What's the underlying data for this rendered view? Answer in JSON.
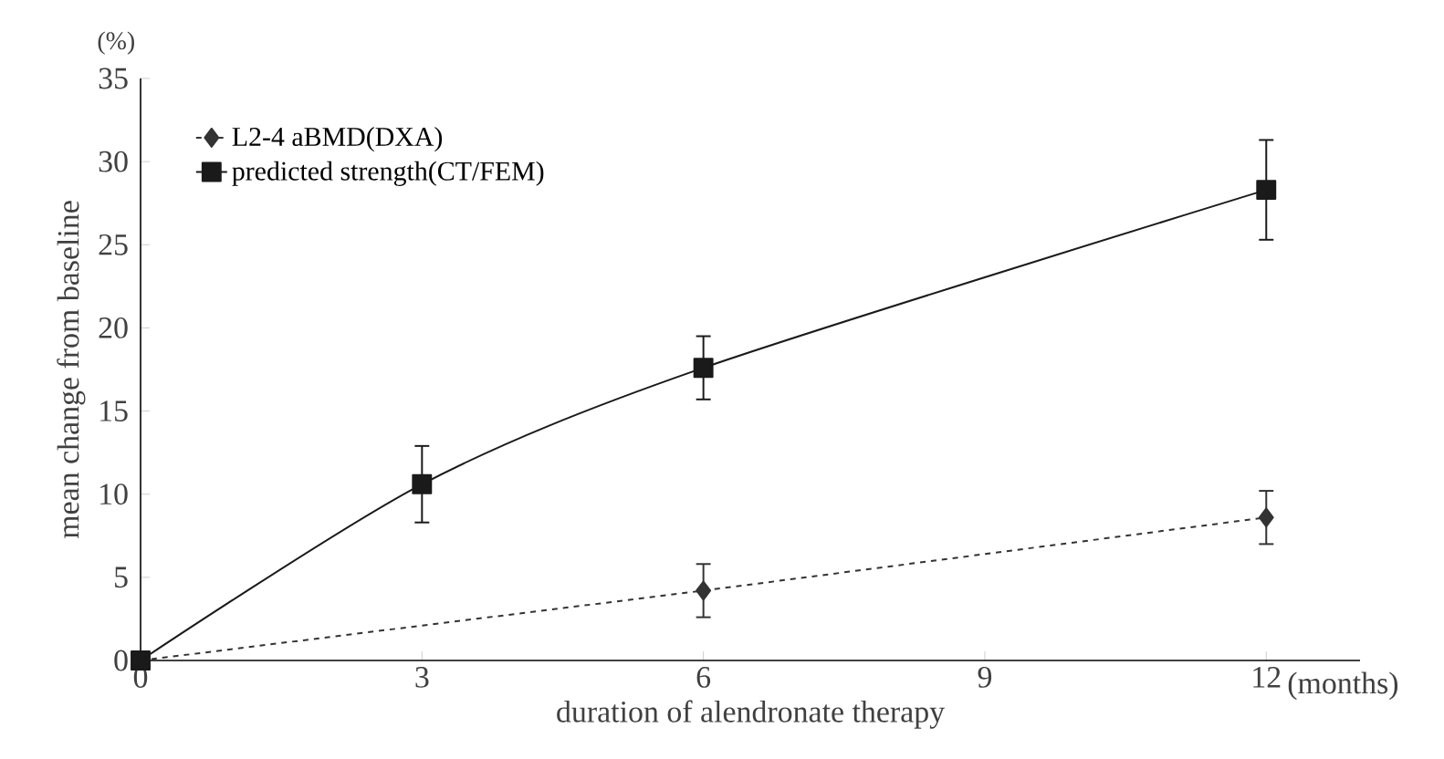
{
  "chart_data": {
    "type": "line",
    "xlabel": "duration of alendronate therapy",
    "ylabel": "mean change from baseline",
    "series": [
      {
        "name": "L2-4 aBMD(DXA)",
        "color": "#333333",
        "x": [
          0,
          6,
          12
        ],
        "values": [
          0,
          4.2,
          8.6
        ],
        "errors": [
          null,
          1.6,
          1.6
        ],
        "marker": "diamond",
        "line_style": "dashed"
      },
      {
        "name": "predicted strength(CT/FEM)",
        "color": "#1a1a1a",
        "x": [
          0,
          3,
          6,
          12
        ],
        "values": [
          0,
          10.6,
          17.6,
          28.3
        ],
        "errors": [
          null,
          2.3,
          1.9,
          3.0
        ],
        "marker": "square",
        "line_style": "solid"
      }
    ],
    "xlim": [
      0,
      13
    ],
    "ylim": [
      0,
      35
    ],
    "xticks": [
      0,
      3,
      6,
      9,
      12
    ],
    "yticks": [
      0,
      5,
      10,
      15,
      20,
      25,
      30,
      35
    ],
    "annotations": [
      "(%)",
      "(months)"
    ],
    "legend": "top left",
    "grid": false
  }
}
